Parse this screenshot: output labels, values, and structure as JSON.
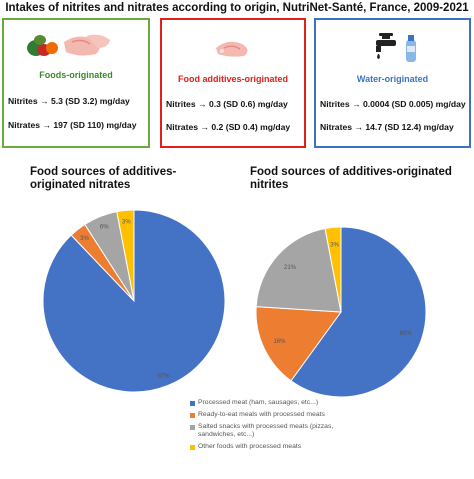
{
  "header": {
    "title": "Intakes of nitrites and nitrates according to origin, NutriNet-Santé, France, 2009-2021"
  },
  "boxes": {
    "food": {
      "label": "Foods-originated",
      "label_color": "#3a8a2a",
      "border_color": "#6aaa3a",
      "icon": "meat-and-vegetables-icon",
      "line1": "Nitrites → 5.3 (SD 3.2) mg/day",
      "line2": "Nitrates → 197 (SD 110) mg/day"
    },
    "additives": {
      "label": "Food additives-originated",
      "label_color": "#e0201a",
      "border_color": "#e0201a",
      "icon": "processed-meat-icon",
      "line1": "Nitrites → 0.3 (SD 0.6) mg/day",
      "line2": "Nitrates → 0.2 (SD 0.4) mg/day"
    },
    "water": {
      "label": "Water-originated",
      "label_color": "#3b73c4",
      "border_color": "#3b73c4",
      "icon": "faucet-and-bottle-icon",
      "line1": "Nitrites → 0.0004 (SD 0.005) mg/day",
      "line2": "Nitrates → 14.7 (SD 12.4) mg/day"
    }
  },
  "chart_data": [
    {
      "type": "pie",
      "title": "Food sources of additives-originated nitrates",
      "categories": [
        "Processed meat (ham, sausages, etc...)",
        "Ready-to-eat meals with processed meats",
        "Salted snacks with processed meats (pizzas, sandwiches, etc...)",
        "Other foods with processed meats"
      ],
      "values": [
        87,
        3,
        6,
        3
      ],
      "labels": [
        "87%",
        "3%",
        "6%",
        "3%"
      ],
      "colors": [
        "#4472c4",
        "#ed7d31",
        "#a5a5a5",
        "#ffc000"
      ]
    },
    {
      "type": "pie",
      "title": "Food sources of additives-originated nitrites",
      "categories": [
        "Processed meat (ham, sausages, etc...)",
        "Ready-to-eat meals with processed meats",
        "Salted snacks with processed meats (pizzas, sandwiches, etc...)",
        "Other foods with processed meats"
      ],
      "values": [
        60,
        16,
        21,
        3
      ],
      "labels": [
        "60%",
        "16%",
        "21%",
        "3%"
      ],
      "colors": [
        "#4472c4",
        "#ed7d31",
        "#a5a5a5",
        "#ffc000"
      ]
    }
  ],
  "legend": {
    "items": [
      {
        "label": "Processed meat (ham, sausages, etc...)",
        "color": "#4472c4"
      },
      {
        "label": "Ready-to-eat meals with processed meats",
        "color": "#ed7d31"
      },
      {
        "label": "Salted snacks with processed meats (pizzas, sandwiches, etc...)",
        "color": "#a5a5a5"
      },
      {
        "label": "Other foods with processed meats",
        "color": "#ffc000"
      }
    ]
  }
}
